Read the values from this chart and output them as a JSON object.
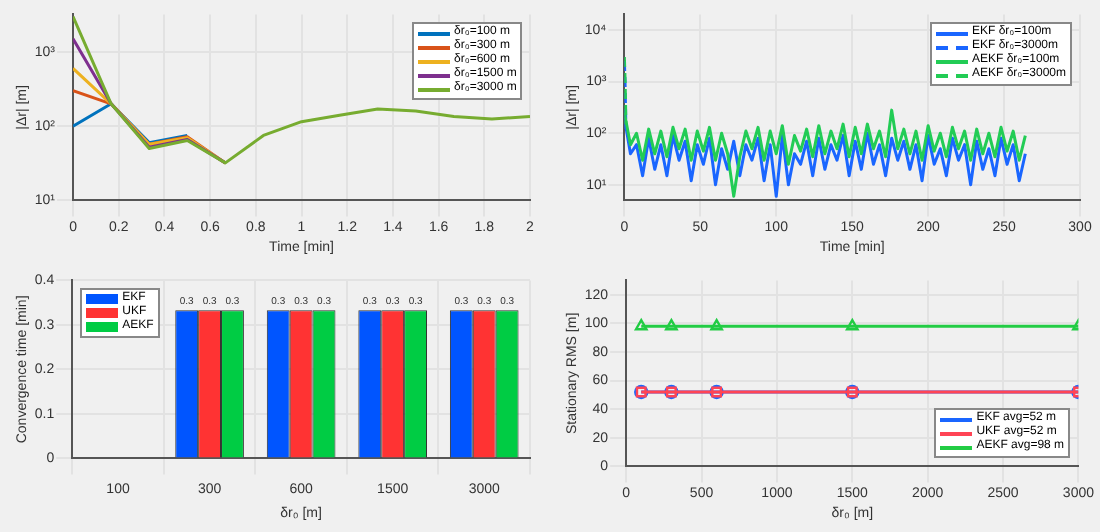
{
  "chart_data": [
    {
      "type": "line",
      "xlabel": "Time [min]",
      "ylabel": "|Δr| [m]",
      "log": "y",
      "grid": true,
      "legend": "top right",
      "xlim": [
        0,
        2
      ],
      "xticks": [
        0,
        0.2,
        0.4,
        0.6,
        0.8,
        1,
        1.2,
        1.4,
        1.6,
        1.8,
        2
      ],
      "ylim": [
        10,
        3200
      ],
      "yticks": [
        {
          "value": 10,
          "label": "10¹"
        },
        {
          "value": 100,
          "label": "10²"
        },
        {
          "value": 1000,
          "label": "10³"
        }
      ],
      "x": [
        0,
        0.1667,
        0.3333,
        0.5,
        0.6667,
        0.8333,
        1,
        1.1667,
        1.3333,
        1.5,
        1.6667,
        1.8333,
        2
      ],
      "series": [
        {
          "name": "δr₀=100 m",
          "color": "#0072bd",
          "values": [
            100,
            200,
            60,
            75,
            null,
            null,
            null,
            null,
            null,
            null,
            null,
            null,
            null
          ]
        },
        {
          "name": "δr₀=300 m",
          "color": "#d95319",
          "values": [
            300,
            200,
            57,
            72,
            32,
            null,
            null,
            null,
            null,
            null,
            null,
            null,
            null
          ]
        },
        {
          "name": "δr₀=600 m",
          "color": "#edb120",
          "values": [
            600,
            200,
            57,
            70,
            32,
            null,
            null,
            null,
            null,
            null,
            null,
            null,
            null
          ]
        },
        {
          "name": "δr₀=1500 m",
          "color": "#7e2f8e",
          "values": [
            1500,
            200,
            52,
            66,
            32,
            null,
            null,
            null,
            null,
            null,
            null,
            null,
            null
          ]
        },
        {
          "name": "δr₀=3000 m",
          "color": "#77ac30",
          "values": [
            3000,
            200,
            50,
            64,
            32,
            75,
            115,
            140,
            170,
            160,
            135,
            125,
            135
          ]
        }
      ]
    },
    {
      "type": "line",
      "xlabel": "Time [min]",
      "ylabel": "|Δr| [m]",
      "log": "y",
      "grid": true,
      "legend": "top right",
      "xlim": [
        0,
        300
      ],
      "xticks": [
        0,
        50,
        100,
        150,
        200,
        250,
        300
      ],
      "ylim": [
        5,
        20000
      ],
      "yticks": [
        {
          "value": 10,
          "label": "10¹"
        },
        {
          "value": 100,
          "label": "10²"
        },
        {
          "value": 1000,
          "label": "10³"
        },
        {
          "value": 10000,
          "label": "10⁴"
        }
      ],
      "x": [
        0,
        4,
        8,
        12,
        16,
        20,
        24,
        28,
        32,
        36,
        40,
        44,
        48,
        52,
        56,
        60,
        64,
        68,
        72,
        76,
        80,
        84,
        88,
        92,
        96,
        100,
        104,
        108,
        112,
        116,
        120,
        124,
        128,
        132,
        136,
        140,
        144,
        148,
        152,
        156,
        160,
        164,
        168,
        172,
        176,
        180,
        184,
        188,
        192,
        196,
        200,
        204,
        208,
        212,
        216,
        220,
        224,
        228,
        232,
        236,
        240,
        244,
        248,
        252,
        256,
        260,
        264
      ],
      "series": [
        {
          "name": "EKF δr₀=100m",
          "color": "#1a66ff",
          "values": [
            200,
            40,
            60,
            15,
            80,
            20,
            60,
            15,
            90,
            30,
            70,
            12,
            60,
            25,
            80,
            10,
            50,
            20,
            70,
            15,
            60,
            30,
            80,
            12,
            60,
            6,
            90,
            10,
            40,
            25,
            70,
            15,
            80,
            20,
            60,
            30,
            90,
            15,
            70,
            20,
            100,
            25,
            60,
            15,
            80,
            30,
            70,
            20,
            60,
            12,
            90,
            25,
            50,
            15,
            80,
            30,
            60,
            10,
            70,
            20,
            50,
            15,
            80,
            25,
            60,
            12,
            40
          ]
        },
        {
          "name": "EKF δr₀=3000m",
          "color": "#1a66ff",
          "line_style": "dashed",
          "x": [
            0,
            0.5,
            1
          ],
          "values": [
            2500,
            800,
            120
          ]
        },
        {
          "name": "AEKF δr₀=100m",
          "color": "#22cc55",
          "values": [
            250,
            60,
            100,
            30,
            120,
            40,
            110,
            35,
            130,
            50,
            120,
            30,
            110,
            45,
            130,
            30,
            100,
            40,
            6,
            35,
            110,
            50,
            130,
            30,
            110,
            40,
            140,
            25,
            90,
            45,
            120,
            35,
            140,
            40,
            110,
            50,
            150,
            35,
            130,
            40,
            150,
            50,
            110,
            35,
            280,
            50,
            120,
            40,
            110,
            30,
            140,
            45,
            100,
            35,
            130,
            50,
            110,
            30,
            120,
            40,
            100,
            35,
            130,
            45,
            110,
            30,
            90
          ]
        },
        {
          "name": "AEKF δr₀=3000m",
          "color": "#22cc55",
          "line_style": "dashed",
          "x": [
            0,
            0.5,
            1
          ],
          "values": [
            3000,
            1000,
            150
          ]
        }
      ]
    },
    {
      "type": "bar",
      "xlabel": "δr₀ [m]",
      "ylabel": "Convergence time [min]",
      "grid": true,
      "legend": "top left",
      "ylim": [
        0,
        0.4
      ],
      "yticks": [
        0,
        0.1,
        0.2,
        0.3,
        0.4
      ],
      "categories": [
        "100",
        "300",
        "600",
        "1500",
        "3000"
      ],
      "series": [
        {
          "name": "EKF",
          "color": "#0055ff",
          "values": [
            0,
            0.333,
            0.333,
            0.333,
            0.333
          ],
          "value_labels": [
            null,
            "0.3",
            "0.3",
            "0.3",
            "0.3"
          ]
        },
        {
          "name": "UKF",
          "color": "#ff3333",
          "values": [
            0,
            0.333,
            0.333,
            0.333,
            0.333
          ],
          "value_labels": [
            null,
            "0.3",
            "0.3",
            "0.3",
            "0.3"
          ]
        },
        {
          "name": "AEKF",
          "color": "#00cc44",
          "values": [
            0,
            0.333,
            0.333,
            0.333,
            0.333
          ],
          "value_labels": [
            null,
            "0.3",
            "0.3",
            "0.3",
            "0.3"
          ]
        }
      ]
    },
    {
      "type": "line",
      "xlabel": "δr₀ [m]",
      "ylabel": "Stationary RMS [m]",
      "grid": true,
      "legend": "bottom right",
      "xlim": [
        0,
        3000
      ],
      "xticks": [
        0,
        500,
        1000,
        1500,
        2000,
        2500,
        3000
      ],
      "ylim": [
        0,
        130
      ],
      "yticks": [
        0,
        20,
        40,
        60,
        80,
        100,
        120
      ],
      "x": [
        100,
        300,
        600,
        1500,
        3000
      ],
      "series": [
        {
          "name": "EKF  avg=52 m",
          "color": "#1a66ff",
          "marker": "circle",
          "values": [
            52,
            52,
            52,
            52,
            52
          ]
        },
        {
          "name": "UKF  avg=52 m",
          "color": "#ff4455",
          "marker": "square",
          "values": [
            52,
            52,
            52,
            52,
            52
          ]
        },
        {
          "name": "AEKF avg=98 m",
          "color": "#22cc44",
          "marker": "triangle",
          "values": [
            98,
            98,
            98,
            98,
            98
          ]
        }
      ]
    }
  ]
}
